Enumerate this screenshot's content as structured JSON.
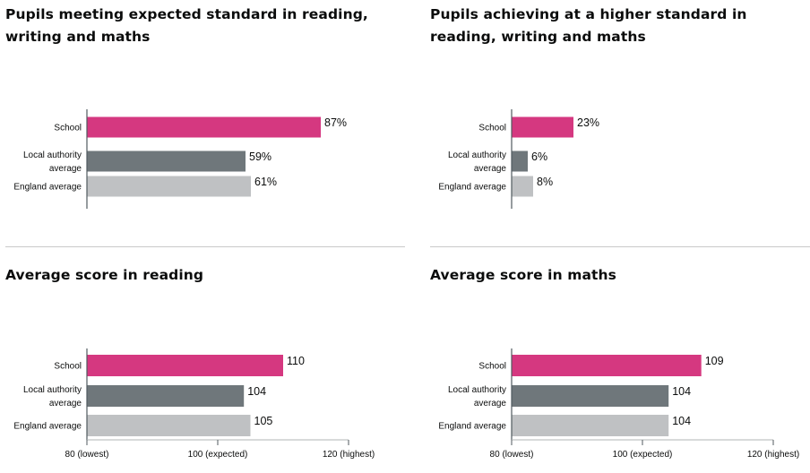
{
  "colors": {
    "school": "#d53880",
    "local_authority": "#6f777b",
    "england": "#bfc1c3"
  },
  "chart_data": [
    {
      "type": "bar",
      "orientation": "horizontal",
      "title": "Pupils meeting expected standard in reading, writing and maths",
      "categories": [
        [
          "School"
        ],
        [
          "Local authority",
          "average"
        ],
        [
          "England average"
        ]
      ],
      "values": [
        87,
        59,
        61
      ],
      "value_labels": [
        "87%",
        "59%",
        "61%"
      ],
      "xlim": [
        0,
        100
      ],
      "xticks": []
    },
    {
      "type": "bar",
      "orientation": "horizontal",
      "title": "Pupils achieving at a higher standard in reading, writing and maths",
      "categories": [
        [
          "School"
        ],
        [
          "Local authority",
          "average"
        ],
        [
          "England average"
        ]
      ],
      "values": [
        23,
        6,
        8
      ],
      "value_labels": [
        "23%",
        "6%",
        "8%"
      ],
      "xlim": [
        0,
        100
      ],
      "xticks": []
    },
    {
      "type": "bar",
      "orientation": "horizontal",
      "title": "Average score in reading",
      "categories": [
        [
          "School"
        ],
        [
          "Local authority",
          "average"
        ],
        [
          "England average"
        ]
      ],
      "values": [
        110,
        104,
        105
      ],
      "value_labels": [
        "110",
        "104",
        "105"
      ],
      "xlim": [
        80,
        120
      ],
      "xticks": [
        {
          "value": 80,
          "label": "80 (lowest)"
        },
        {
          "value": 100,
          "label": "100 (expected)"
        },
        {
          "value": 120,
          "label": "120 (highest)"
        }
      ]
    },
    {
      "type": "bar",
      "orientation": "horizontal",
      "title": "Average score in maths",
      "categories": [
        [
          "School"
        ],
        [
          "Local authority",
          "average"
        ],
        [
          "England average"
        ]
      ],
      "values": [
        109,
        104,
        104
      ],
      "value_labels": [
        "109",
        "104",
        "104"
      ],
      "xlim": [
        80,
        120
      ],
      "xticks": [
        {
          "value": 80,
          "label": "80 (lowest)"
        },
        {
          "value": 100,
          "label": "100 (expected)"
        },
        {
          "value": 120,
          "label": "120 (highest)"
        }
      ]
    }
  ]
}
